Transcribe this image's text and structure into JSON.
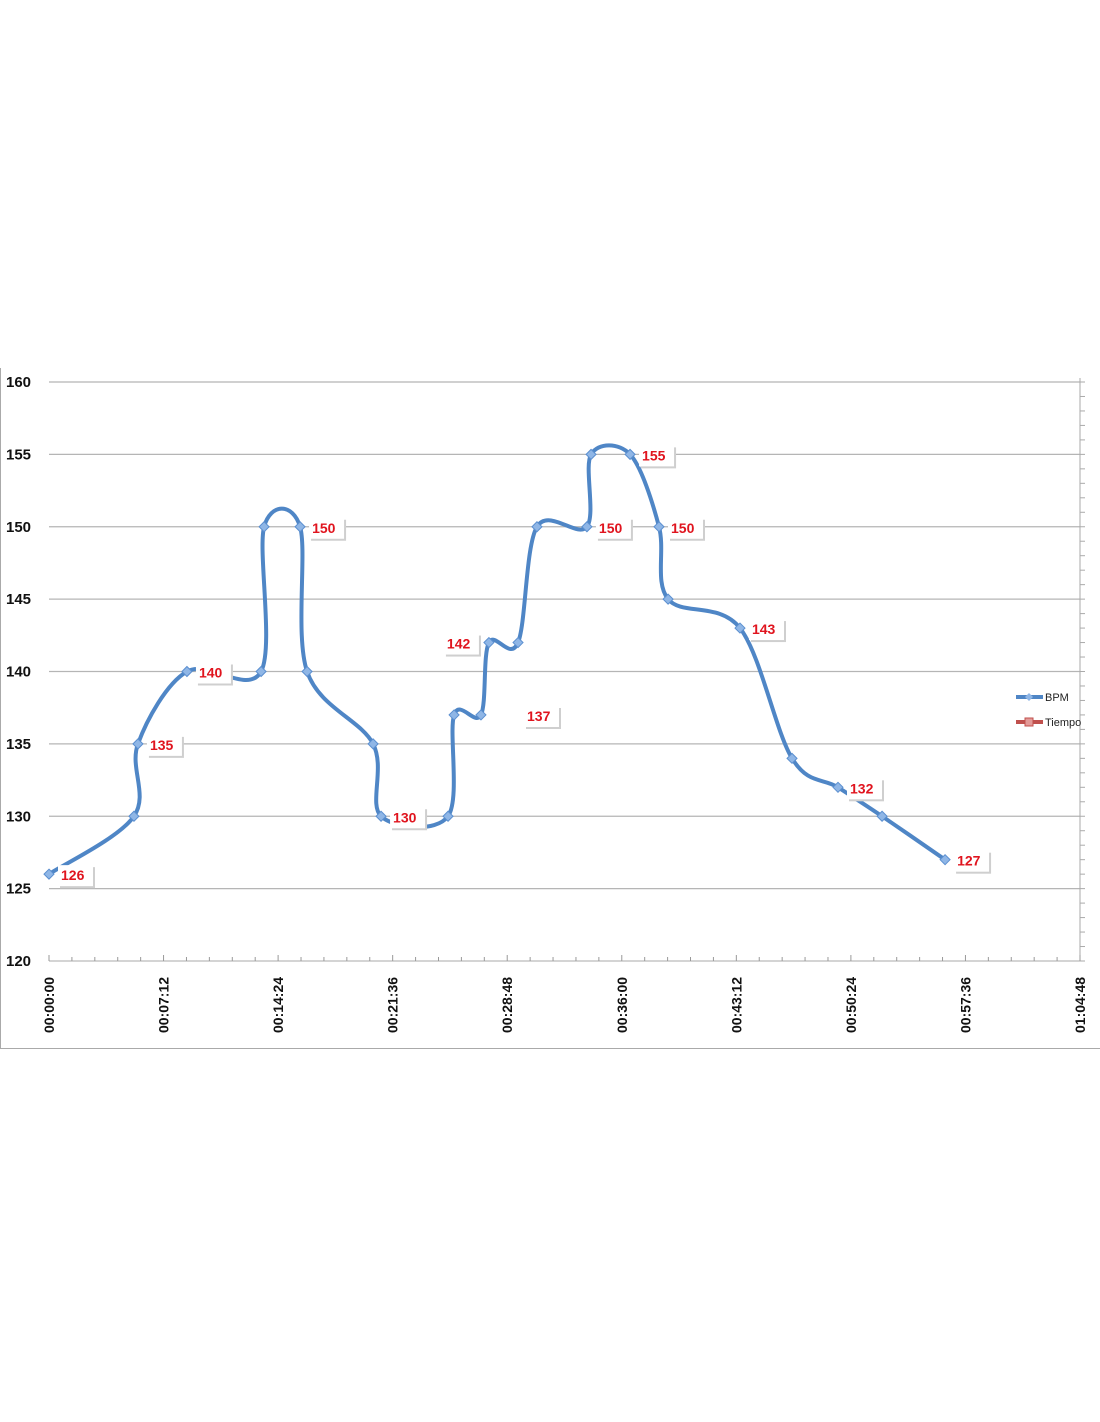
{
  "chart_data": {
    "type": "line",
    "title": "",
    "xlabel": "",
    "ylabel": "",
    "x_unit": "minutes",
    "xlim": [
      0,
      64.8
    ],
    "ylim": [
      120,
      160
    ],
    "y_ticks": [
      "120",
      "125",
      "130",
      "135",
      "140",
      "145",
      "150",
      "155",
      "160"
    ],
    "x_ticks": [
      "00:00:00",
      "00:07:12",
      "00:14:24",
      "00:21:36",
      "00:28:48",
      "00:36:00",
      "00:43:12",
      "00:50:24",
      "00:57:36",
      "01:04:48"
    ],
    "grid": true,
    "legend_position": "right",
    "legend": [
      "BPM",
      "Tiempo"
    ],
    "series": [
      {
        "name": "BPM",
        "color": "#4f86c6",
        "x": [
          0,
          5.34,
          5.59,
          8.67,
          13.33,
          13.52,
          15.78,
          16.22,
          20.37,
          20.87,
          25.08,
          25.46,
          27.15,
          27.65,
          29.48,
          30.67,
          33.81,
          34.07,
          36.52,
          38.34,
          38.91,
          43.43,
          46.7,
          49.59,
          52.36,
          56.32
        ],
        "values": [
          126,
          130,
          135,
          140,
          140,
          150,
          150,
          140,
          135,
          130,
          130,
          137,
          137,
          142,
          142,
          150,
          150,
          155,
          155,
          150,
          145,
          143,
          134,
          132,
          130,
          127
        ]
      },
      {
        "name": "Tiempo",
        "color": "#c0504d",
        "x": [],
        "values": []
      }
    ],
    "data_labels": [
      {
        "index": 0,
        "text": "126"
      },
      {
        "index": 2,
        "text": "135"
      },
      {
        "index": 3,
        "text": "140"
      },
      {
        "index": 6,
        "text": "150"
      },
      {
        "index": 9,
        "text": "130"
      },
      {
        "index": 13,
        "text": "142",
        "side": "left"
      },
      {
        "index": 12,
        "text": "137",
        "offset": "detached"
      },
      {
        "index": 16,
        "text": "150"
      },
      {
        "index": 18,
        "text": "155"
      },
      {
        "index": 19,
        "text": "150"
      },
      {
        "index": 21,
        "text": "143"
      },
      {
        "index": 23,
        "text": "132"
      },
      {
        "index": 25,
        "text": "127"
      }
    ]
  }
}
